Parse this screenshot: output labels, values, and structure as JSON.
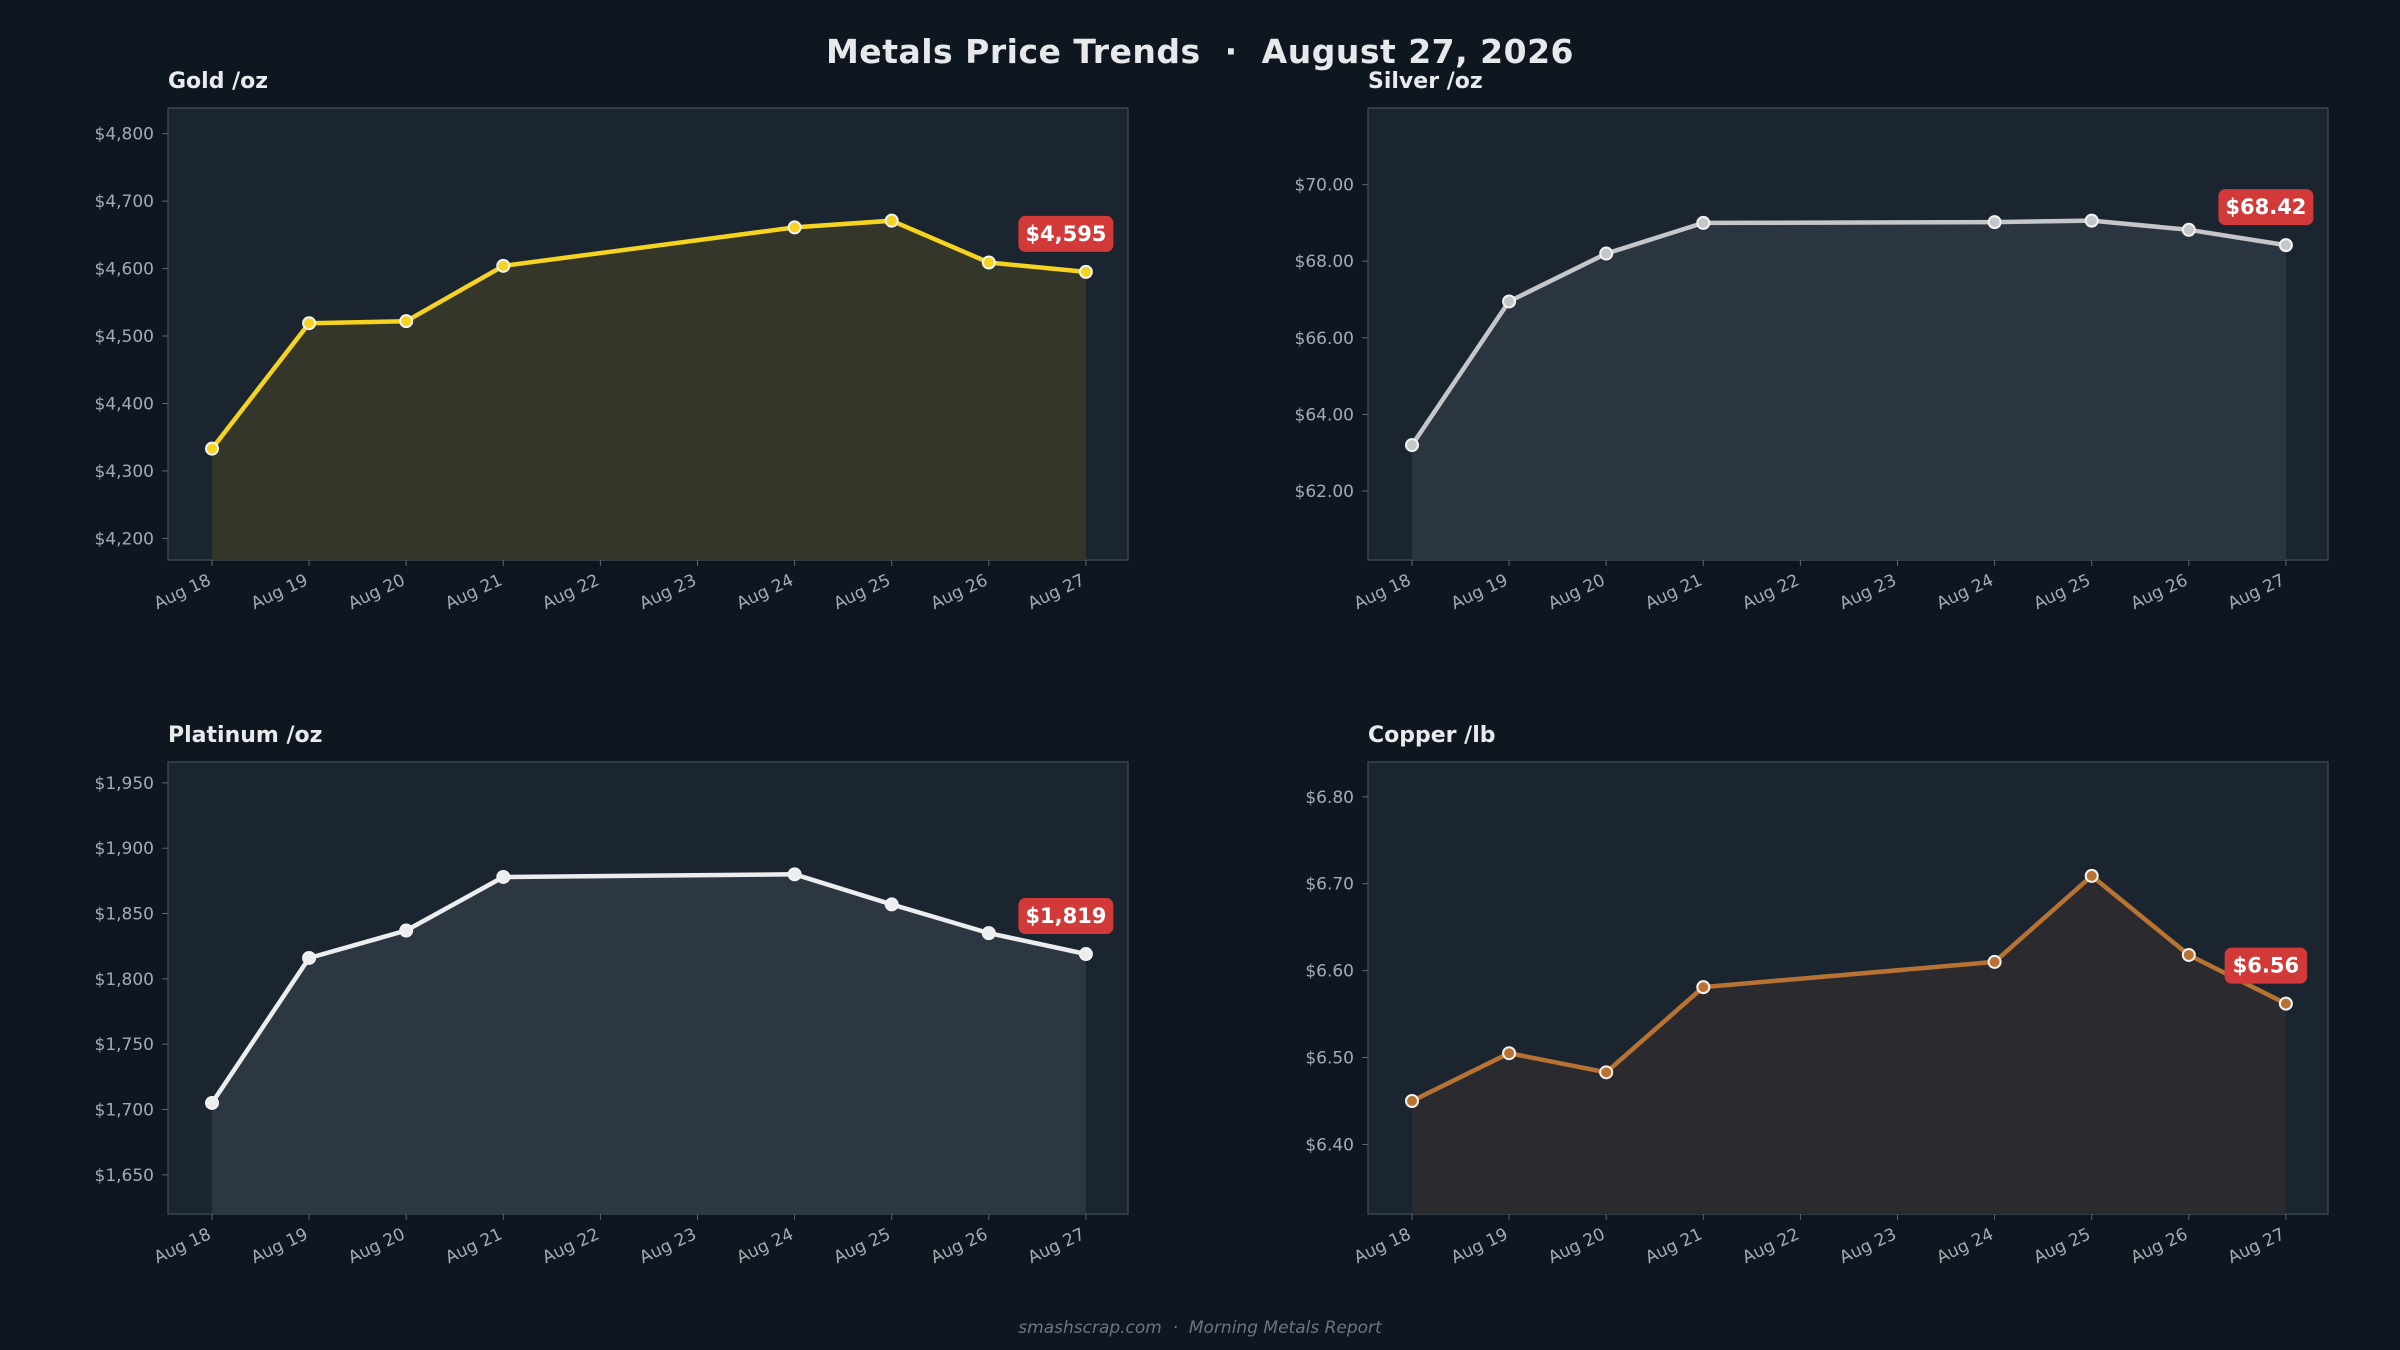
{
  "page": {
    "title": "Metals Price Trends  ·  August 27, 2026",
    "footer": "smashscrap.com  ·  Morning Metals Report"
  },
  "chart_data": [
    {
      "type": "line",
      "title": "Gold  /oz",
      "color": "#f5d320",
      "fill_color": "#343629",
      "x": [
        "Aug 18",
        "Aug 19",
        "Aug 20",
        "Aug 21",
        "Aug 22",
        "Aug 23",
        "Aug 24",
        "Aug 25",
        "Aug 26",
        "Aug 27"
      ],
      "series": [
        {
          "values": [
            4333,
            4519,
            4522,
            4604,
            null,
            null,
            4661,
            4671,
            4609,
            4595
          ]
        }
      ],
      "ylim": [
        4168,
        4838
      ],
      "yticks": [
        4200,
        4300,
        4400,
        4500,
        4600,
        4700,
        4800
      ],
      "ytick_labels": [
        "$4,200",
        "$4,300",
        "$4,400",
        "$4,500",
        "$4,600",
        "$4,700",
        "$4,800"
      ],
      "latest_label": "$4,595",
      "grid": false
    },
    {
      "type": "line",
      "title": "Silver  /oz",
      "color": "#c4c6c9",
      "fill_color": "#2b3540",
      "x": [
        "Aug 18",
        "Aug 19",
        "Aug 20",
        "Aug 21",
        "Aug 22",
        "Aug 23",
        "Aug 24",
        "Aug 25",
        "Aug 26",
        "Aug 27"
      ],
      "series": [
        {
          "values": [
            63.2,
            66.95,
            68.2,
            69.0,
            null,
            null,
            69.02,
            69.06,
            68.82,
            68.42
          ]
        }
      ],
      "ylim": [
        60.2,
        72.0
      ],
      "yticks": [
        62,
        64,
        66,
        68,
        70
      ],
      "ytick_labels": [
        "$62.00",
        "$64.00",
        "$66.00",
        "$68.00",
        "$70.00"
      ],
      "latest_label": "$68.42",
      "grid": false
    },
    {
      "type": "line",
      "title": "Platinum  /oz",
      "color": "#ecedef",
      "fill_color": "#2d3741",
      "x": [
        "Aug 18",
        "Aug 19",
        "Aug 20",
        "Aug 21",
        "Aug 22",
        "Aug 23",
        "Aug 24",
        "Aug 25",
        "Aug 26",
        "Aug 27"
      ],
      "series": [
        {
          "values": [
            1705,
            1816,
            1837,
            1878,
            null,
            null,
            1880,
            1857,
            1835,
            1819
          ]
        }
      ],
      "ylim": [
        1620,
        1966
      ],
      "yticks": [
        1650,
        1700,
        1750,
        1800,
        1850,
        1900,
        1950
      ],
      "ytick_labels": [
        "$1,650",
        "$1,700",
        "$1,750",
        "$1,800",
        "$1,850",
        "$1,900",
        "$1,950"
      ],
      "latest_label": "$1,819",
      "grid": false
    },
    {
      "type": "line",
      "title": "Copper  /lb",
      "color": "#b87333",
      "fill_color": "#2b2b2f",
      "x": [
        "Aug 18",
        "Aug 19",
        "Aug 20",
        "Aug 21",
        "Aug 22",
        "Aug 23",
        "Aug 24",
        "Aug 25",
        "Aug 26",
        "Aug 27"
      ],
      "series": [
        {
          "values": [
            6.45,
            6.505,
            6.483,
            6.581,
            null,
            null,
            6.61,
            6.709,
            6.618,
            6.562
          ]
        }
      ],
      "ylim": [
        6.32,
        6.84
      ],
      "yticks": [
        6.4,
        6.5,
        6.6,
        6.7,
        6.8
      ],
      "ytick_labels": [
        "$6.40",
        "$6.50",
        "$6.60",
        "$6.70",
        "$6.80"
      ],
      "latest_label": "$6.56",
      "grid": false
    }
  ]
}
